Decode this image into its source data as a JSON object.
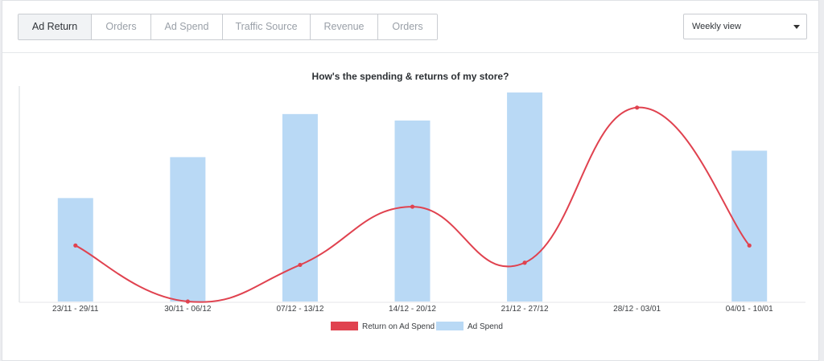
{
  "tabs": [
    {
      "label": "Ad Return",
      "active": true
    },
    {
      "label": "Orders",
      "active": false
    },
    {
      "label": "Ad Spend",
      "active": false
    },
    {
      "label": "Traffic Source",
      "active": false
    },
    {
      "label": "Revenue",
      "active": false
    },
    {
      "label": "Orders",
      "active": false
    }
  ],
  "view_select": {
    "selected": "Weekly view",
    "icon": "chevron-down-icon"
  },
  "colors": {
    "bar": "#b9d9f5",
    "line": "#e0424f",
    "accent": "#e0424f"
  },
  "chart_data": {
    "type": "bar",
    "title": "How's the spending & returns of my store?",
    "categories": [
      "23/11 - 29/11",
      "30/11 - 06/12",
      "07/12 - 13/12",
      "14/12 - 20/12",
      "21/12 - 27/12",
      "28/12 - 03/01",
      "04/01 - 10/01"
    ],
    "ylim": [
      0,
      100
    ],
    "grid": false,
    "legend_position": "bottom",
    "series": [
      {
        "name": "Return on Ad Spend",
        "kind": "line",
        "smooth": true,
        "values": [
          26,
          0,
          17,
          44,
          18,
          90,
          26
        ]
      },
      {
        "name": "Ad Spend",
        "kind": "bar",
        "values": [
          48,
          67,
          87,
          84,
          97,
          0,
          70
        ]
      }
    ]
  }
}
